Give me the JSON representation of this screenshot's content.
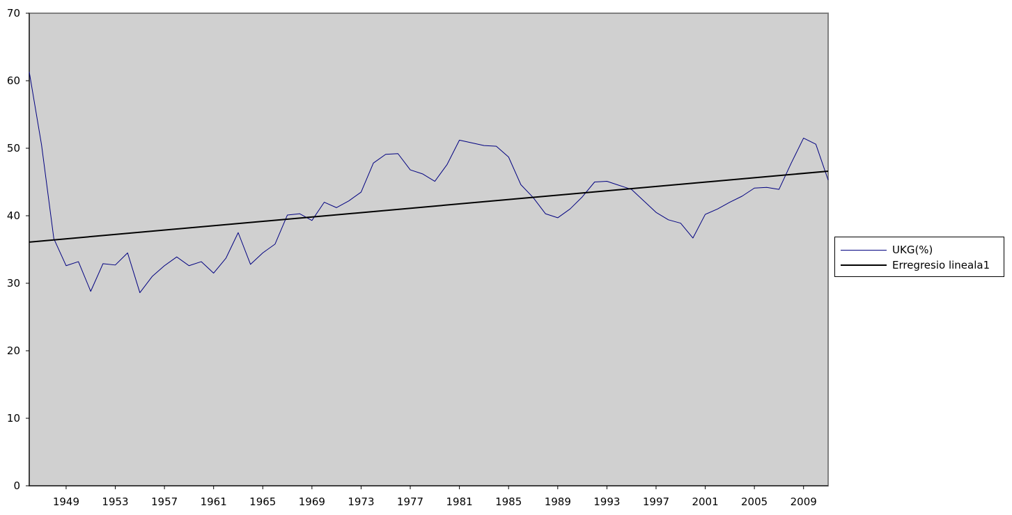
{
  "chart_data": {
    "type": "line",
    "title": "",
    "xlabel": "",
    "ylabel": "",
    "x_start": 1946,
    "x_end": 2011,
    "xlim": [
      1946,
      2011
    ],
    "ylim": [
      0,
      70
    ],
    "y_ticks": [
      "0",
      "10",
      "20",
      "30",
      "40",
      "50",
      "60",
      "70"
    ],
    "x_ticks": [
      "1949",
      "1953",
      "1957",
      "1961",
      "1965",
      "1969",
      "1973",
      "1977",
      "1981",
      "1985",
      "1989",
      "1993",
      "1997",
      "2001",
      "2005",
      "2009"
    ],
    "grid": false,
    "legend_position": "right",
    "plot_background": "#d0d0d0",
    "series": [
      {
        "name": "UKG(%)",
        "color": "#000080",
        "x": [
          1946,
          1947,
          1948,
          1949,
          1950,
          1951,
          1952,
          1953,
          1954,
          1955,
          1956,
          1957,
          1958,
          1959,
          1960,
          1961,
          1962,
          1963,
          1964,
          1965,
          1966,
          1967,
          1968,
          1969,
          1970,
          1971,
          1972,
          1973,
          1974,
          1975,
          1976,
          1977,
          1978,
          1979,
          1980,
          1981,
          1982,
          1983,
          1984,
          1985,
          1986,
          1987,
          1988,
          1989,
          1990,
          1991,
          1992,
          1993,
          1994,
          1995,
          1996,
          1997,
          1998,
          1999,
          2000,
          2001,
          2002,
          2003,
          2004,
          2005,
          2006,
          2007,
          2008,
          2009,
          2010,
          2011
        ],
        "values": [
          61.3,
          50.5,
          36.6,
          32.6,
          33.2,
          28.8,
          32.9,
          32.7,
          34.5,
          28.6,
          31.0,
          32.6,
          33.9,
          32.6,
          33.2,
          31.5,
          33.7,
          37.5,
          32.8,
          34.5,
          35.8,
          40.1,
          40.3,
          39.3,
          42.0,
          41.2,
          42.2,
          43.5,
          47.8,
          49.1,
          49.2,
          46.8,
          46.2,
          45.1,
          47.6,
          51.2,
          50.8,
          50.4,
          50.3,
          48.7,
          44.6,
          42.7,
          40.3,
          39.7,
          41.0,
          42.8,
          45.0,
          45.1,
          44.5,
          43.9,
          42.2,
          40.5,
          39.4,
          38.9,
          36.7,
          40.2,
          41.0,
          42.0,
          42.9,
          44.1,
          44.2,
          43.9,
          47.8,
          51.5,
          50.6,
          45.3
        ]
      },
      {
        "name": "Erregresio lineala1",
        "color": "#000000",
        "x": [
          1946,
          2011
        ],
        "values": [
          36.1,
          46.6
        ]
      }
    ]
  }
}
